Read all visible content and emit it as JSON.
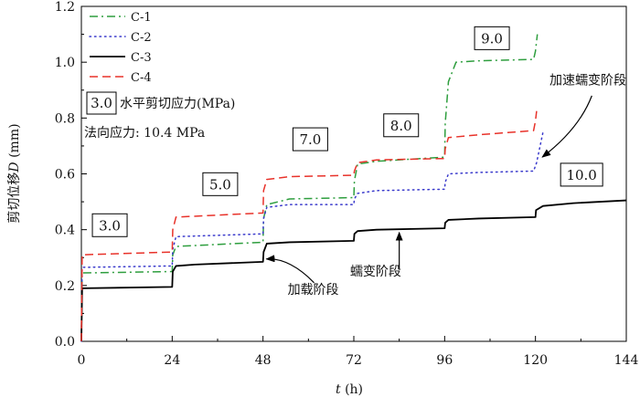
{
  "chart_data": {
    "type": "line",
    "title": "",
    "xlabel_var": "t",
    "xlabel_unit": " (h)",
    "ylabel_prefix": "剪切位移",
    "ylabel_var": "D",
    "ylabel_unit": " (mm)",
    "xlim": [
      0,
      144
    ],
    "ylim": [
      0,
      1.2
    ],
    "xticks": [
      0,
      24,
      48,
      72,
      96,
      120,
      144
    ],
    "yticks": [
      0.0,
      0.2,
      0.4,
      0.6,
      0.8,
      1.0,
      1.2
    ],
    "grid": false,
    "legend_position": "top-left",
    "series": [
      {
        "name": "C-1",
        "color": "#2e9e3e",
        "dash": "dashdot",
        "points": [
          [
            0,
            0
          ],
          [
            0.1,
            0.1
          ],
          [
            0.2,
            0.245
          ],
          [
            24,
            0.25
          ],
          [
            24.15,
            0.31
          ],
          [
            25,
            0.34
          ],
          [
            48,
            0.355
          ],
          [
            48.15,
            0.44
          ],
          [
            49,
            0.49
          ],
          [
            55,
            0.51
          ],
          [
            72,
            0.515
          ],
          [
            72.15,
            0.575
          ],
          [
            73,
            0.635
          ],
          [
            78,
            0.645
          ],
          [
            96,
            0.66
          ],
          [
            96.15,
            0.78
          ],
          [
            97,
            0.93
          ],
          [
            99,
            1.0
          ],
          [
            105,
            1.005
          ],
          [
            119.5,
            1.01
          ],
          [
            120,
            1.04
          ],
          [
            120.5,
            1.1
          ]
        ]
      },
      {
        "name": "C-2",
        "color": "#3a3acc",
        "dash": "dot",
        "points": [
          [
            0,
            0
          ],
          [
            0.1,
            0.12
          ],
          [
            0.2,
            0.265
          ],
          [
            24,
            0.27
          ],
          [
            24.15,
            0.33
          ],
          [
            25,
            0.375
          ],
          [
            48,
            0.385
          ],
          [
            48.15,
            0.44
          ],
          [
            49,
            0.48
          ],
          [
            55,
            0.49
          ],
          [
            72,
            0.49
          ],
          [
            72.15,
            0.51
          ],
          [
            73,
            0.53
          ],
          [
            78,
            0.54
          ],
          [
            96,
            0.545
          ],
          [
            96.15,
            0.57
          ],
          [
            97,
            0.6
          ],
          [
            105,
            0.605
          ],
          [
            119.5,
            0.61
          ],
          [
            120.3,
            0.64
          ],
          [
            122,
            0.75
          ]
        ]
      },
      {
        "name": "C-3",
        "color": "#000000",
        "dash": "solid",
        "points": [
          [
            0,
            0
          ],
          [
            0.1,
            0.1
          ],
          [
            0.2,
            0.19
          ],
          [
            24,
            0.195
          ],
          [
            24.15,
            0.25
          ],
          [
            25,
            0.27
          ],
          [
            30,
            0.275
          ],
          [
            48,
            0.285
          ],
          [
            48.15,
            0.32
          ],
          [
            49,
            0.35
          ],
          [
            55,
            0.355
          ],
          [
            72,
            0.36
          ],
          [
            72.15,
            0.385
          ],
          [
            73,
            0.395
          ],
          [
            78,
            0.4
          ],
          [
            96,
            0.405
          ],
          [
            96.15,
            0.425
          ],
          [
            97,
            0.435
          ],
          [
            105,
            0.44
          ],
          [
            120,
            0.445
          ],
          [
            120.15,
            0.47
          ],
          [
            122,
            0.485
          ],
          [
            130,
            0.495
          ],
          [
            144,
            0.505
          ]
        ]
      },
      {
        "name": "C-4",
        "color": "#e8322a",
        "dash": "dash",
        "points": [
          [
            0,
            0
          ],
          [
            0.1,
            0.15
          ],
          [
            0.2,
            0.31
          ],
          [
            24,
            0.32
          ],
          [
            24.15,
            0.4
          ],
          [
            25,
            0.445
          ],
          [
            48,
            0.46
          ],
          [
            48.15,
            0.54
          ],
          [
            49,
            0.58
          ],
          [
            55,
            0.59
          ],
          [
            72,
            0.595
          ],
          [
            72.15,
            0.61
          ],
          [
            73,
            0.64
          ],
          [
            78,
            0.65
          ],
          [
            96,
            0.655
          ],
          [
            96.15,
            0.69
          ],
          [
            97,
            0.73
          ],
          [
            105,
            0.74
          ],
          [
            119.5,
            0.755
          ],
          [
            120,
            0.79
          ],
          [
            120.3,
            0.825
          ]
        ]
      }
    ],
    "stress_boxes": [
      {
        "label": "3.0",
        "x": 7.5,
        "y": 0.416
      },
      {
        "label": "5.0",
        "x": 36.7,
        "y": 0.563
      },
      {
        "label": "7.0",
        "x": 60.5,
        "y": 0.724
      },
      {
        "label": "8.0",
        "x": 84.5,
        "y": 0.774
      },
      {
        "label": "9.0",
        "x": 108.5,
        "y": 1.086
      },
      {
        "label": "10.0",
        "x": 132.2,
        "y": 0.597
      }
    ],
    "legend_note": {
      "box_label": "3.0",
      "text": "水平剪切应力(MPa)"
    },
    "normal_stress_text": "法向应力: 10.4 MPa",
    "annotations": [
      {
        "text": "加速蠕变阶段",
        "anchor": "end",
        "tx": 144,
        "ty": 0.92,
        "arrow_from": [
          134.9,
          0.88
        ],
        "arrow_ctrl": [
          131.5,
          0.76
        ],
        "arrow_to": [
          121.8,
          0.66
        ]
      },
      {
        "text": "加载阶段",
        "anchor": "start",
        "tx": 54.5,
        "ty": 0.17,
        "arrow_from": [
          61.5,
          0.21
        ],
        "arrow_ctrl": [
          55,
          0.3
        ],
        "arrow_to": [
          48.9,
          0.295
        ]
      },
      {
        "text": "蠕变阶段",
        "anchor": "start",
        "tx": 71,
        "ty": 0.235,
        "arrow_from": [
          84,
          0.26
        ],
        "arrow_ctrl": [
          84,
          0.32
        ],
        "arrow_to": [
          84,
          0.39
        ]
      }
    ]
  }
}
